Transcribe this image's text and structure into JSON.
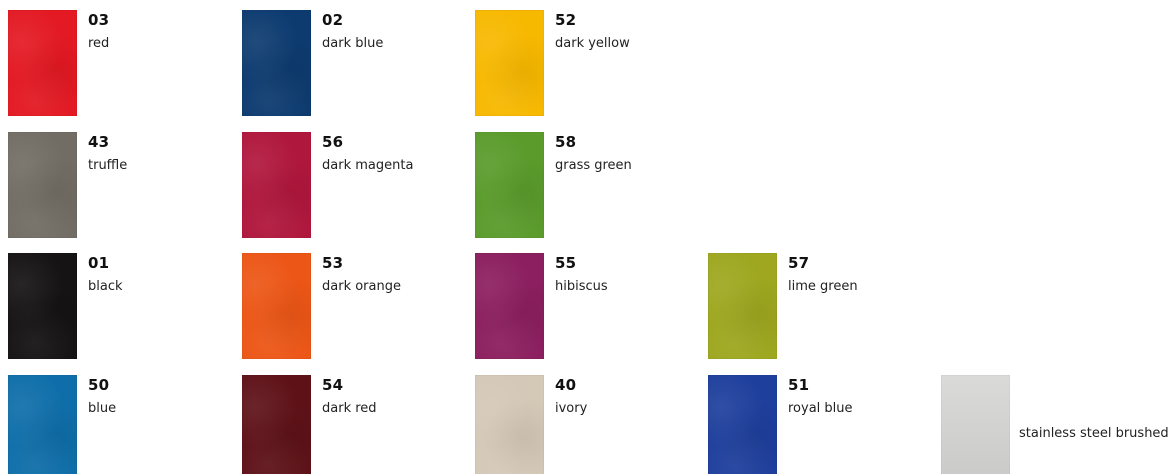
{
  "swatches": [
    {
      "code": "03",
      "name": "red",
      "color": "#e31923"
    },
    {
      "code": "02",
      "name": "dark blue",
      "color": "#0d3b70"
    },
    {
      "code": "52",
      "name": "dark yellow",
      "color": "#f7b800"
    },
    {
      "code": "43",
      "name": "truffle",
      "color": "#726d64"
    },
    {
      "code": "56",
      "name": "dark magenta",
      "color": "#b0173d"
    },
    {
      "code": "58",
      "name": "grass green",
      "color": "#5a9b2b"
    },
    {
      "code": "01",
      "name": "black",
      "color": "#151313"
    },
    {
      "code": "53",
      "name": "dark orange",
      "color": "#ec5616"
    },
    {
      "code": "55",
      "name": "hibiscus",
      "color": "#8c1f5f"
    },
    {
      "code": "57",
      "name": "lime green",
      "color": "#9ea71f"
    },
    {
      "code": "50",
      "name": "blue",
      "color": "#0f6ea9"
    },
    {
      "code": "54",
      "name": "dark red",
      "color": "#5e1218"
    },
    {
      "code": "40",
      "name": "ivory",
      "color": "#d4c8b7"
    },
    {
      "code": "51",
      "name": "royal blue",
      "color": "#1e3f9c"
    }
  ],
  "steel": {
    "name": "stainless steel brushed",
    "color": "#d2d2d0"
  }
}
